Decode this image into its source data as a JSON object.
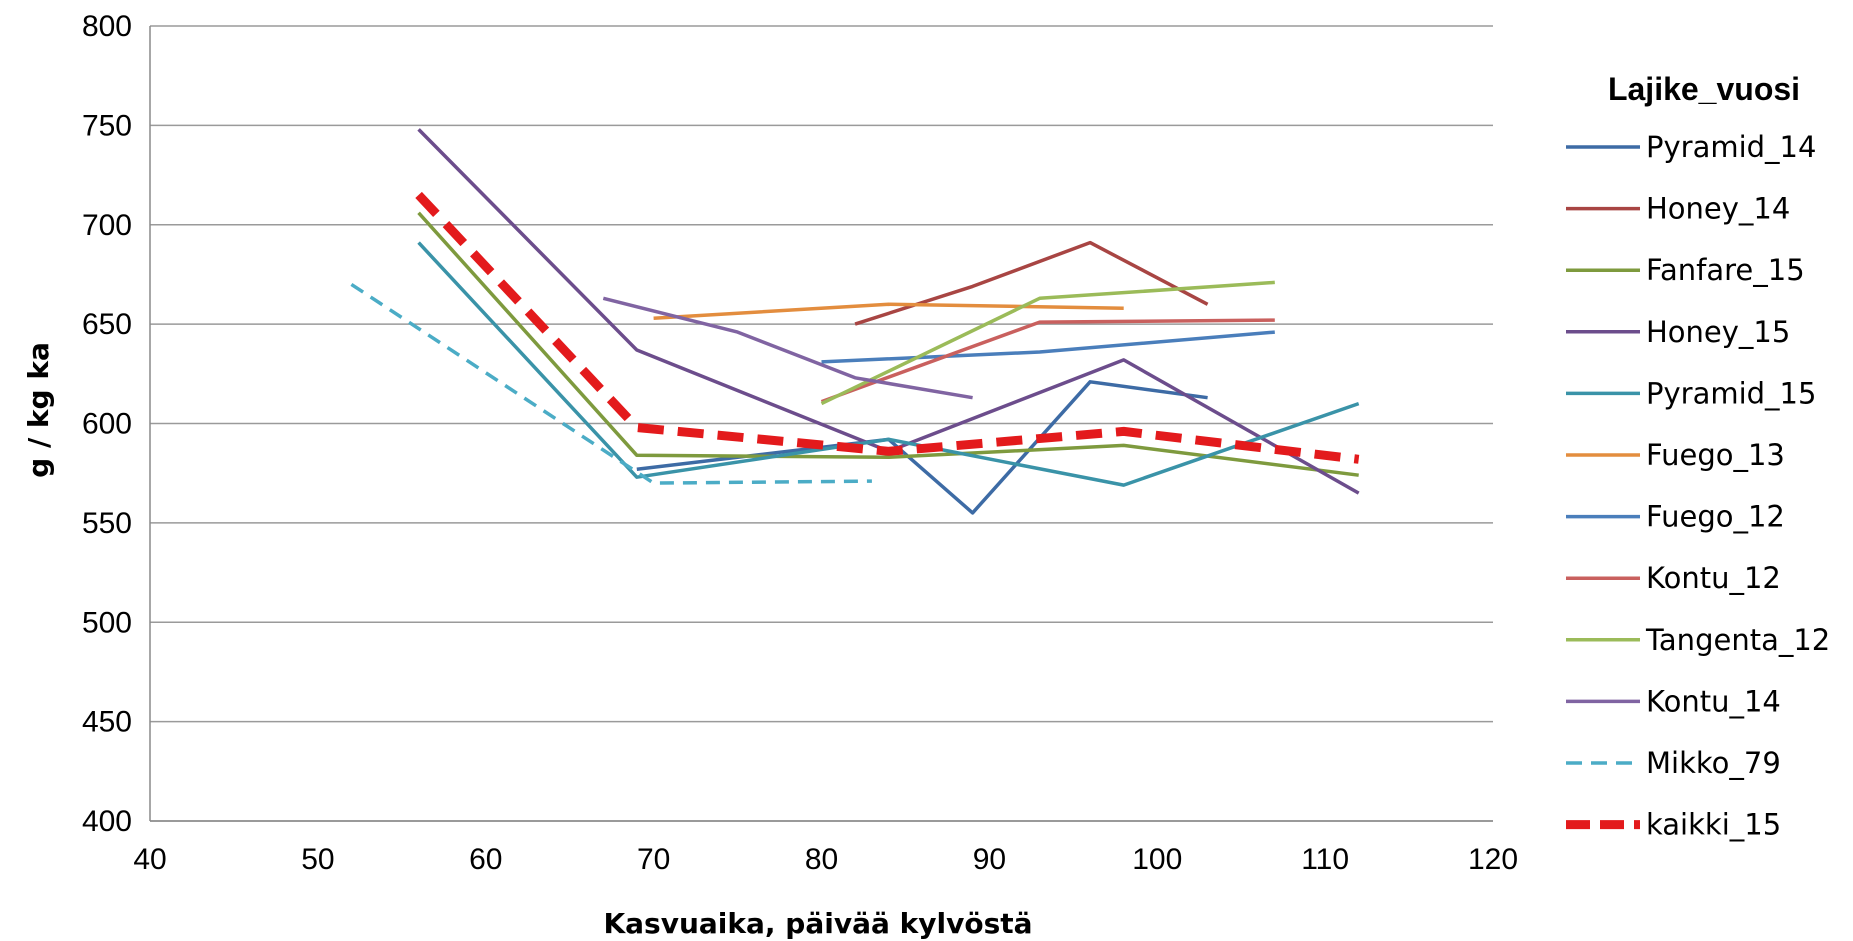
{
  "chart_data": {
    "type": "line",
    "title": "",
    "xlabel": "Kasvuaika, päivää kylvöstä",
    "ylabel": "g / kg ka",
    "xlim": [
      40,
      120
    ],
    "ylim": [
      400,
      800
    ],
    "xticks": [
      40,
      50,
      60,
      70,
      80,
      90,
      100,
      110,
      120
    ],
    "yticks": [
      400,
      450,
      500,
      550,
      600,
      650,
      700,
      750,
      800
    ],
    "grid": "horizontal",
    "legend": {
      "title": "Lajike_vuosi",
      "position": "right"
    },
    "series": [
      {
        "name": "Pyramid_14",
        "color": "#3d6ba5",
        "dash": "solid",
        "points": [
          [
            69,
            577
          ],
          [
            84,
            592
          ],
          [
            89,
            555
          ],
          [
            96,
            621
          ],
          [
            103,
            613
          ]
        ]
      },
      {
        "name": "Honey_14",
        "color": "#a84543",
        "dash": "solid",
        "points": [
          [
            82,
            650
          ],
          [
            89,
            669
          ],
          [
            96,
            691
          ],
          [
            103,
            660
          ]
        ]
      },
      {
        "name": "Fanfare_15",
        "color": "#7e9a3e",
        "dash": "solid",
        "points": [
          [
            56,
            706
          ],
          [
            69,
            584
          ],
          [
            84,
            583
          ],
          [
            98,
            589
          ],
          [
            112,
            574
          ]
        ]
      },
      {
        "name": "Honey_15",
        "color": "#6c4d8c",
        "dash": "solid",
        "points": [
          [
            56,
            748
          ],
          [
            69,
            637
          ],
          [
            84,
            586
          ],
          [
            98,
            632
          ],
          [
            112,
            565
          ]
        ]
      },
      {
        "name": "Pyramid_15",
        "color": "#3a93a8",
        "dash": "solid",
        "points": [
          [
            56,
            691
          ],
          [
            69,
            573
          ],
          [
            84,
            592
          ],
          [
            98,
            569
          ],
          [
            112,
            610
          ]
        ]
      },
      {
        "name": "Fuego_13",
        "color": "#e38d3e",
        "dash": "solid",
        "points": [
          [
            70,
            653
          ],
          [
            84,
            660
          ],
          [
            98,
            658
          ]
        ]
      },
      {
        "name": "Fuego_12",
        "color": "#4a7ebb",
        "dash": "solid",
        "points": [
          [
            80,
            631
          ],
          [
            93,
            636
          ],
          [
            107,
            646
          ]
        ]
      },
      {
        "name": "Kontu_12",
        "color": "#c9605e",
        "dash": "solid",
        "points": [
          [
            80,
            611
          ],
          [
            93,
            651
          ],
          [
            107,
            652
          ]
        ]
      },
      {
        "name": "Tangenta_12",
        "color": "#9bbb59",
        "dash": "solid",
        "points": [
          [
            80,
            610
          ],
          [
            93,
            663
          ],
          [
            107,
            671
          ]
        ]
      },
      {
        "name": "Kontu_14",
        "color": "#8064a2",
        "dash": "solid",
        "points": [
          [
            67,
            663
          ],
          [
            75,
            646
          ],
          [
            82,
            623
          ],
          [
            89,
            613
          ]
        ]
      },
      {
        "name": "Mikko_79",
        "color": "#4bacc6",
        "dash": "dashed",
        "points": [
          [
            52,
            670
          ],
          [
            70,
            570
          ],
          [
            83,
            571
          ]
        ]
      },
      {
        "name": "kaikki_15",
        "color": "#e31a1c",
        "dash": "thick-dashed",
        "points": [
          [
            56,
            715
          ],
          [
            69,
            598
          ],
          [
            84,
            586
          ],
          [
            98,
            596
          ],
          [
            112,
            582
          ]
        ]
      }
    ]
  }
}
